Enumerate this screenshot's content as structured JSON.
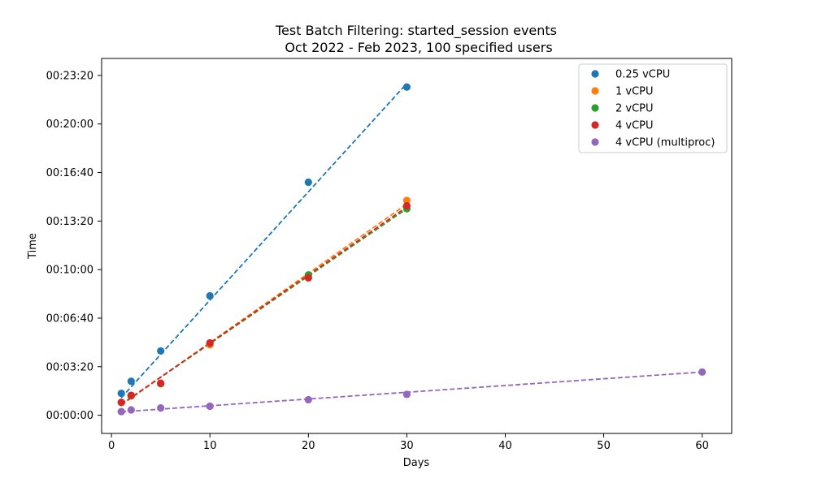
{
  "chart_data": {
    "type": "scatter",
    "title": "Test Batch Filtering: started_session events",
    "subtitle": "Oct 2022 - Feb 2023, 100 specified users",
    "xlabel": "Days",
    "ylabel": "Time",
    "xlim": [
      -1,
      63
    ],
    "ylim": [
      -75,
      1470
    ],
    "x_ticks": [
      0,
      10,
      20,
      30,
      40,
      50,
      60
    ],
    "x_tick_labels": [
      "0",
      "10",
      "20",
      "30",
      "40",
      "50",
      "60"
    ],
    "y_ticks": [
      0,
      200,
      400,
      600,
      800,
      1000,
      1200,
      1400
    ],
    "y_tick_labels": [
      "00:00:00",
      "00:03:20",
      "00:06:40",
      "00:10:00",
      "00:13:20",
      "00:16:40",
      "00:20:00",
      "00:23:20"
    ],
    "y_unit": "seconds",
    "grid": false,
    "legend_position": "top-right",
    "series": [
      {
        "name": "0.25 vCPU",
        "color": "#1f77b4",
        "points": [
          [
            1,
            90
          ],
          [
            2,
            140
          ],
          [
            5,
            265
          ],
          [
            10,
            492
          ],
          [
            20,
            960
          ],
          [
            30,
            1352
          ]
        ],
        "fit_line": [
          [
            1,
            72
          ],
          [
            30,
            1367
          ]
        ]
      },
      {
        "name": "1 vCPU",
        "color": "#ff7f0e",
        "points": [
          [
            1,
            53
          ],
          [
            2,
            80
          ],
          [
            5,
            130
          ],
          [
            10,
            290
          ],
          [
            20,
            568
          ],
          [
            30,
            885
          ]
        ],
        "fit_line": [
          [
            1,
            42
          ],
          [
            30,
            870
          ]
        ]
      },
      {
        "name": "2 vCPU",
        "color": "#2ca02c",
        "points": [
          [
            1,
            53
          ],
          [
            2,
            80
          ],
          [
            5,
            130
          ],
          [
            10,
            297
          ],
          [
            20,
            578
          ],
          [
            30,
            851
          ]
        ],
        "fit_line": [
          [
            1,
            45
          ],
          [
            30,
            851
          ]
        ]
      },
      {
        "name": "4 vCPU",
        "color": "#d62728",
        "points": [
          [
            1,
            53
          ],
          [
            2,
            82
          ],
          [
            5,
            132
          ],
          [
            10,
            298
          ],
          [
            20,
            566
          ],
          [
            30,
            863
          ]
        ],
        "fit_line": [
          [
            1,
            45
          ],
          [
            30,
            858
          ]
        ]
      },
      {
        "name": "4 vCPU (multiproc)",
        "color": "#9467bd",
        "points": [
          [
            1,
            15
          ],
          [
            2,
            22
          ],
          [
            5,
            30
          ],
          [
            10,
            37
          ],
          [
            20,
            64
          ],
          [
            30,
            86
          ],
          [
            60,
            178
          ]
        ],
        "fit_line": [
          [
            1,
            14
          ],
          [
            60,
            178
          ]
        ]
      }
    ]
  }
}
